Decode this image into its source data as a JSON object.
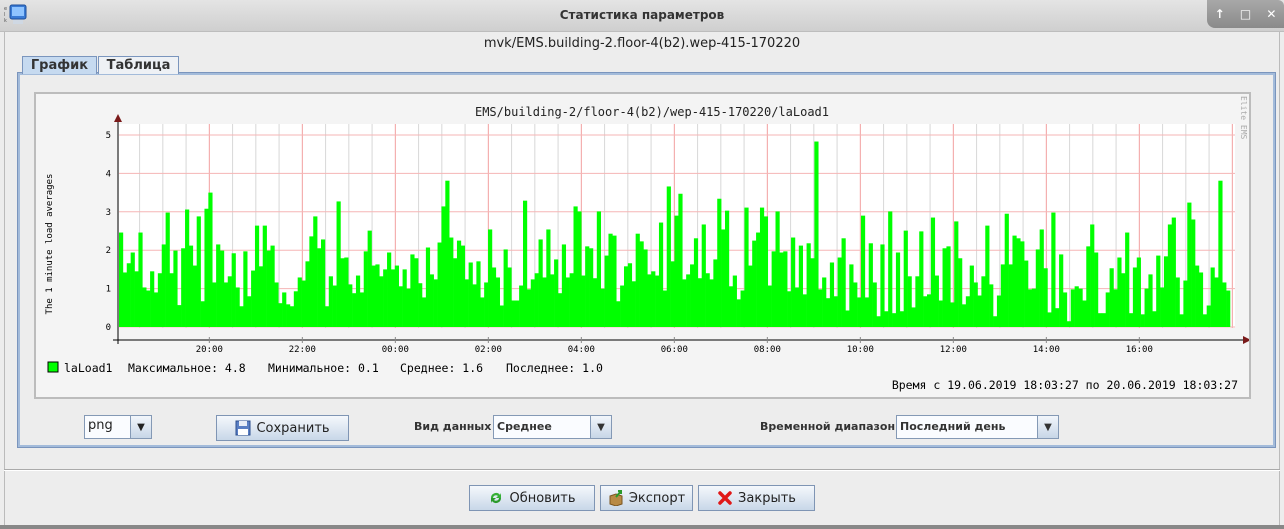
{
  "window": {
    "title": "Статистика параметров",
    "controls": [
      "↑",
      "□",
      "✕"
    ]
  },
  "subtitle": "mvk/EMS.building-2.floor-4(b2).wep-415-170220",
  "tabs": [
    {
      "label": "График",
      "selected": true
    },
    {
      "label": "Таблица",
      "selected": false
    }
  ],
  "chart_data": {
    "type": "bar",
    "title": "EMS/building-2/floor-4(b2)/wep-415-170220/laLoad1",
    "ylabel": "The 1 minute load averages",
    "xlabel": "",
    "ylim": [
      0,
      5
    ],
    "yticks": [
      "0",
      "1",
      "2",
      "3",
      "4",
      "5"
    ],
    "xticks": [
      "20:00",
      "22:00",
      "00:00",
      "02:00",
      "04:00",
      "06:00",
      "08:00",
      "10:00",
      "12:00",
      "14:00",
      "16:00"
    ],
    "grid": true,
    "watermark": "Elite EMS",
    "bar_color": "#00ff00",
    "series": [
      {
        "name": "laLoad1",
        "values": [
          2.46,
          1.42,
          1.66,
          1.94,
          1.45,
          2.46,
          1.03,
          0.95,
          1.45,
          0.9,
          1.4,
          2.15,
          2.98,
          1.4,
          1.99,
          0.57,
          2.05,
          3.06,
          2.12,
          1.6,
          2.88,
          0.67,
          3.08,
          3.5,
          1.16,
          2.15,
          1.99,
          1.16,
          1.32,
          1.92,
          1.03,
          0.54,
          1.97,
          0.8,
          1.47,
          2.64,
          1.58,
          2.64,
          1.99,
          2.12,
          1.16,
          0.62,
          0.9,
          0.59,
          0.54,
          0.93,
          1.29,
          1.21,
          1.71,
          2.36,
          2.88,
          2.05,
          2.28,
          0.54,
          1.32,
          1.08,
          3.27,
          1.79,
          1.81,
          1.11,
          0.88,
          1.34,
          0.9,
          1.97,
          2.51,
          1.6,
          1.63,
          1.32,
          1.5,
          1.94,
          1.5,
          1.6,
          1.06,
          1.5,
          1.0,
          1.89,
          1.79,
          1.14,
          0.77,
          2.07,
          1.37,
          1.24,
          2.2,
          3.14,
          3.81,
          2.33,
          1.79,
          2.25,
          2.12,
          1.24,
          1.68,
          1.11,
          1.71,
          0.77,
          1.16,
          2.54,
          1.55,
          1.29,
          0.56,
          2.02,
          1.55,
          0.69,
          0.69,
          1.08,
          3.29,
          0.98,
          1.24,
          1.4,
          2.28,
          1.29,
          2.54,
          1.37,
          1.76,
          0.88,
          2.15,
          1.29,
          1.4,
          3.14,
          3.01,
          1.34,
          2.1,
          2.05,
          1.27,
          3.01,
          1.0,
          1.86,
          2.43,
          2.38,
          0.67,
          1.08,
          1.58,
          1.66,
          1.19,
          2.43,
          2.23,
          2.02,
          1.37,
          1.45,
          1.34,
          2.72,
          0.95,
          3.66,
          1.71,
          2.9,
          3.47,
          1.24,
          1.37,
          1.63,
          2.31,
          1.27,
          2.67,
          1.4,
          1.24,
          1.76,
          3.34,
          2.54,
          3.03,
          1.06,
          1.34,
          0.72,
          0.95,
          3.11,
          1.6,
          2.25,
          2.46,
          3.11,
          2.88,
          1.08,
          1.97,
          3.01,
          1.94,
          1.97,
          0.93,
          2.33,
          1.03,
          2.12,
          0.85,
          2.18,
          1.79,
          4.83,
          0.98,
          1.29,
          0.75,
          1.68,
          0.8,
          1.81,
          2.31,
          0.43,
          1.63,
          1.16,
          0.77,
          2.9,
          0.77,
          2.18,
          1.16,
          0.28,
          2.15,
          0.41,
          3.01,
          0.36,
          1.94,
          0.41,
          2.51,
          1.32,
          0.51,
          1.32,
          2.49,
          0.8,
          0.85,
          2.85,
          1.34,
          0.69,
          2.05,
          2.1,
          0.64,
          2.75,
          1.79,
          0.59,
          0.8,
          1.6,
          1.16,
          0.82,
          1.32,
          2.64,
          1.11,
          0.28,
          0.82,
          1.63,
          2.95,
          1.63,
          2.38,
          2.31,
          2.23,
          1.73,
          0.98,
          1.0,
          2.02,
          2.54,
          1.53,
          0.38,
          2.98,
          0.49,
          1.89,
          0.9,
          0.15,
          0.98,
          1.06,
          1.0,
          0.69,
          2.1,
          2.67,
          1.94,
          0.36,
          0.36,
          0.9,
          1.53,
          0.98,
          1.81,
          1.4,
          2.46,
          0.36,
          1.55,
          1.81,
          0.33,
          1.0,
          1.37,
          0.41,
          1.86,
          1.03,
          1.84,
          2.67,
          2.85,
          1.29,
          0.33,
          1.21,
          3.24,
          2.8,
          1.6,
          1.42,
          0.33,
          0.56,
          1.55,
          1.29,
          3.81,
          1.16,
          0.95
        ]
      }
    ],
    "legend": {
      "name": "laLoad1",
      "max": "Максимальное: 4.8",
      "min": "Минимальное: 0.1",
      "avg": "Среднее: 1.6",
      "last": "Последнее: 1.0"
    },
    "time_range": "Время с 19.06.2019 18:03:27 по 20.06.2019 18:03:27"
  },
  "controls": {
    "format": "png",
    "save_label": "Сохранить",
    "data_view_label": "Вид данных",
    "data_view_value": "Среднее",
    "time_range_label": "Временной диапазон",
    "time_range_value": "Последний день"
  },
  "footer": {
    "refresh_label": "Обновить",
    "export_label": "Экспорт",
    "close_label": "Закрыть"
  }
}
